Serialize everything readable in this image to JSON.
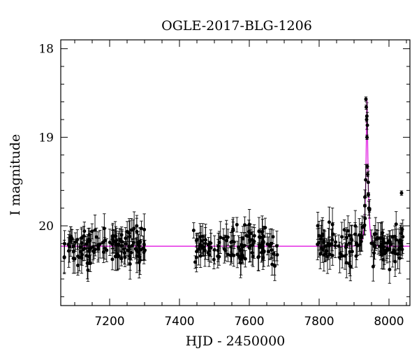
{
  "chart_data": {
    "type": "scatter",
    "title": "OGLE-2017-BLG-1206",
    "xlabel": "HJD - 2450000",
    "ylabel": "I magnitude",
    "xlim": [
      7060,
      8060
    ],
    "ylim": [
      20.9,
      17.9
    ],
    "y_inverted": true,
    "x_ticks": [
      7200,
      7400,
      7600,
      7800,
      8000
    ],
    "y_ticks": [
      18,
      19,
      20
    ],
    "baseline_mag": 20.23,
    "model": {
      "name": "",
      "color": "#dd00dd",
      "peak_hjd": 7937,
      "peak_mag": 18.58,
      "baseline_mag": 20.23,
      "width_days": 7
    },
    "points_color": "#000000",
    "season_windows": [
      {
        "start": 7068,
        "end": 7305,
        "count": 125
      },
      {
        "start": 7440,
        "end": 7680,
        "count": 115
      },
      {
        "start": 7795,
        "end": 8045,
        "count": 130
      }
    ],
    "peak_points": [
      {
        "x": 7934,
        "y": 18.57
      },
      {
        "x": 7935,
        "y": 18.66
      },
      {
        "x": 7936,
        "y": 18.8
      },
      {
        "x": 7937,
        "y": 19.0
      },
      {
        "x": 7938,
        "y": 19.33
      },
      {
        "x": 7939,
        "y": 19.42
      },
      {
        "x": 7941,
        "y": 19.65
      },
      {
        "x": 7944,
        "y": 19.82
      },
      {
        "x": 8036,
        "y": 19.63
      },
      {
        "x": 8038,
        "y": 20.04
      }
    ]
  }
}
